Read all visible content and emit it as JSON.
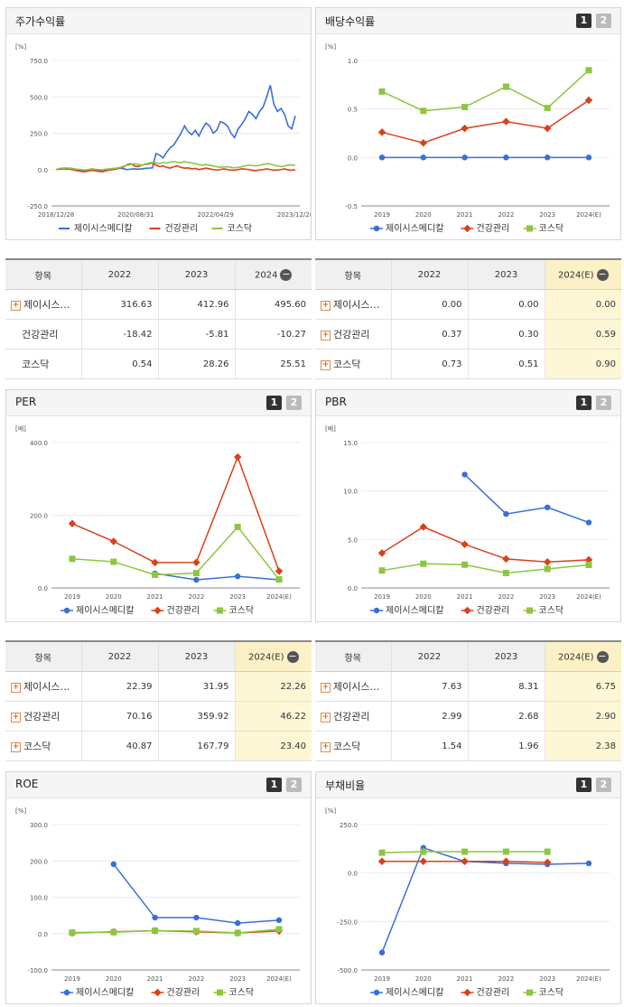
{
  "colors": {
    "company": "#3a6fd8",
    "health": "#d8421b",
    "kosdaq": "#8dc63f"
  },
  "legend": {
    "company": "제이시스메디칼",
    "health": "건강관리",
    "kosdaq": "코스닥"
  },
  "panels": [
    {
      "id": "return",
      "title": "주가수익률",
      "buttons": [],
      "chart_data": {
        "type": "line",
        "unit": "[%]",
        "ylim": [
          -250,
          750
        ],
        "yticks": [
          "750.0",
          "500.0",
          "250.0",
          "0.0",
          "-250.0"
        ],
        "x_tick_labels": [
          "2018/12/28",
          "2020/08/31",
          "2022/04/29",
          "2023/12/28"
        ],
        "series": [
          {
            "name": "제이시스메디칼",
            "key": "company",
            "values": [
              0,
              5,
              8,
              2,
              10,
              5,
              0,
              -5,
              -10,
              -5,
              5,
              0,
              -8,
              -12,
              -5,
              0,
              5,
              10,
              12,
              5,
              0,
              3,
              5,
              3,
              5,
              8,
              10,
              12,
              110,
              100,
              80,
              120,
              150,
              170,
              210,
              250,
              300,
              260,
              240,
              270,
              230,
              280,
              320,
              300,
              250,
              270,
              330,
              320,
              300,
              250,
              220,
              280,
              310,
              350,
              400,
              380,
              350,
              400,
              430,
              500,
              580,
              450,
              400,
              420,
              380,
              300,
              280,
              370
            ]
          },
          {
            "name": "건강관리",
            "key": "health",
            "values": [
              0,
              3,
              5,
              8,
              2,
              -3,
              -8,
              -12,
              -15,
              -10,
              -5,
              -8,
              -12,
              -15,
              -8,
              -3,
              0,
              5,
              10,
              20,
              35,
              40,
              25,
              20,
              30,
              35,
              40,
              45,
              30,
              20,
              25,
              15,
              10,
              20,
              25,
              15,
              10,
              12,
              5,
              8,
              0,
              5,
              10,
              5,
              0,
              -3,
              0,
              5,
              0,
              -3,
              -5,
              0,
              5,
              3,
              0,
              -5,
              -8,
              -3,
              0,
              5,
              0,
              -5,
              -3,
              0,
              5,
              -3,
              -5,
              0
            ]
          },
          {
            "name": "코스닥",
            "key": "kosdaq",
            "values": [
              0,
              8,
              10,
              12,
              8,
              5,
              2,
              0,
              -3,
              0,
              5,
              2,
              0,
              -2,
              3,
              5,
              8,
              10,
              15,
              25,
              30,
              35,
              40,
              35,
              30,
              38,
              45,
              50,
              45,
              40,
              48,
              45,
              52,
              55,
              50,
              48,
              55,
              50,
              45,
              40,
              35,
              30,
              35,
              30,
              25,
              20,
              15,
              18,
              20,
              15,
              12,
              15,
              20,
              25,
              30,
              28,
              25,
              30,
              35,
              40,
              38,
              30,
              25,
              20,
              25,
              30,
              32,
              28
            ]
          }
        ]
      },
      "table": {
        "headers": [
          "항목",
          "2022",
          "2023",
          "2024"
        ],
        "rows": [
          {
            "name": "제이시스…",
            "plus": true,
            "vals": [
              "316.63",
              "412.96",
              "495.60"
            ]
          },
          {
            "name": "건강관리",
            "plus": false,
            "vals": [
              "-18.42",
              "-5.81",
              "-10.27"
            ]
          },
          {
            "name": "코스닥",
            "plus": false,
            "vals": [
              "0.54",
              "28.26",
              "25.51"
            ]
          }
        ]
      }
    },
    {
      "id": "dividend",
      "title": "배당수익률",
      "buttons": [
        "1",
        "2"
      ],
      "chart_data": {
        "type": "line",
        "unit": "[%]",
        "ylim": [
          -0.5,
          1.0
        ],
        "yticks": [
          "1.0",
          "0.5",
          "0.0",
          "-0.5"
        ],
        "categories": [
          "2019",
          "2020",
          "2021",
          "2022",
          "2023",
          "2024(E)"
        ],
        "series": [
          {
            "name": "제이시스메디칼",
            "key": "company",
            "values": [
              0.0,
              0.0,
              0.0,
              0.0,
              0.0,
              0.0
            ]
          },
          {
            "name": "건강관리",
            "key": "health",
            "values": [
              0.26,
              0.15,
              0.3,
              0.37,
              0.3,
              0.59
            ]
          },
          {
            "name": "코스닥",
            "key": "kosdaq",
            "values": [
              0.68,
              0.48,
              0.52,
              0.73,
              0.51,
              0.9
            ]
          }
        ]
      },
      "table": {
        "headers": [
          "항목",
          "2022",
          "2023",
          "2024(E)"
        ],
        "rows": [
          {
            "name": "제이시스…",
            "plus": true,
            "vals": [
              "0.00",
              "0.00",
              "0.00"
            ]
          },
          {
            "name": "건강관리",
            "plus": true,
            "vals": [
              "0.37",
              "0.30",
              "0.59"
            ]
          },
          {
            "name": "코스닥",
            "plus": true,
            "vals": [
              "0.73",
              "0.51",
              "0.90"
            ]
          }
        ]
      }
    },
    {
      "id": "per",
      "title": "PER",
      "buttons": [
        "1",
        "2"
      ],
      "chart_data": {
        "type": "line",
        "unit": "[배]",
        "ylim": [
          0,
          400
        ],
        "yticks": [
          "400.0",
          "200.0",
          "0.0"
        ],
        "categories": [
          "2019",
          "2020",
          "2021",
          "2022",
          "2023",
          "2024(E)"
        ],
        "series": [
          {
            "name": "제이시스메디칼",
            "key": "company",
            "values": [
              null,
              null,
              40,
              22.39,
              31.95,
              22.26
            ]
          },
          {
            "name": "건강관리",
            "key": "health",
            "values": [
              177,
              128,
              70,
              70.16,
              359.92,
              46.22
            ]
          },
          {
            "name": "코스닥",
            "key": "kosdaq",
            "values": [
              80,
              72,
              36,
              40.87,
              167.79,
              23.4
            ]
          }
        ]
      },
      "table": {
        "headers": [
          "항목",
          "2022",
          "2023",
          "2024(E)"
        ],
        "rows": [
          {
            "name": "제이시스…",
            "plus": true,
            "vals": [
              "22.39",
              "31.95",
              "22.26"
            ]
          },
          {
            "name": "건강관리",
            "plus": true,
            "vals": [
              "70.16",
              "359.92",
              "46.22"
            ]
          },
          {
            "name": "코스닥",
            "plus": true,
            "vals": [
              "40.87",
              "167.79",
              "23.40"
            ]
          }
        ]
      }
    },
    {
      "id": "pbr",
      "title": "PBR",
      "buttons": [
        "1",
        "2"
      ],
      "chart_data": {
        "type": "line",
        "unit": "[배]",
        "ylim": [
          0,
          15
        ],
        "yticks": [
          "15.0",
          "10.0",
          "5.0",
          "0.0"
        ],
        "categories": [
          "2019",
          "2020",
          "2021",
          "2022",
          "2023",
          "2024(E)"
        ],
        "series": [
          {
            "name": "제이시스메디칼",
            "key": "company",
            "values": [
              null,
              null,
              11.7,
              7.63,
              8.31,
              6.75
            ]
          },
          {
            "name": "건강관리",
            "key": "health",
            "values": [
              3.6,
              6.3,
              4.5,
              2.99,
              2.68,
              2.9
            ]
          },
          {
            "name": "코스닥",
            "key": "kosdaq",
            "values": [
              1.8,
              2.5,
              2.4,
              1.54,
              1.96,
              2.38
            ]
          }
        ]
      },
      "table": {
        "headers": [
          "항목",
          "2022",
          "2023",
          "2024(E)"
        ],
        "rows": [
          {
            "name": "제이시스…",
            "plus": true,
            "vals": [
              "7.63",
              "8.31",
              "6.75"
            ]
          },
          {
            "name": "건강관리",
            "plus": true,
            "vals": [
              "2.99",
              "2.68",
              "2.90"
            ]
          },
          {
            "name": "코스닥",
            "plus": true,
            "vals": [
              "1.54",
              "1.96",
              "2.38"
            ]
          }
        ]
      }
    },
    {
      "id": "roe",
      "title": "ROE",
      "buttons": [
        "1",
        "2"
      ],
      "chart_data": {
        "type": "line",
        "unit": "[%]",
        "ylim": [
          -100,
          300
        ],
        "yticks": [
          "300.0",
          "200.0",
          "100.0",
          "0.0",
          "-100.0"
        ],
        "categories": [
          "2019",
          "2020",
          "2021",
          "2022",
          "2023",
          "2024(E)"
        ],
        "series": [
          {
            "name": "제이시스메디칼",
            "key": "company",
            "values": [
              null,
              191,
              44,
              44,
              29,
              37
            ]
          },
          {
            "name": "건강관리",
            "key": "health",
            "values": [
              2,
              5,
              8,
              5,
              2,
              7
            ]
          },
          {
            "name": "코스닥",
            "key": "kosdaq",
            "values": [
              3,
              4,
              8,
              7,
              2,
              12
            ]
          }
        ]
      }
    },
    {
      "id": "debt",
      "title": "부채비율",
      "buttons": [
        "1",
        "2"
      ],
      "chart_data": {
        "type": "line",
        "unit": "[%]",
        "ylim": [
          -500,
          250
        ],
        "yticks": [
          "250.0",
          "0.0",
          "-250.0",
          "-500.0"
        ],
        "categories": [
          "2019",
          "2020",
          "2021",
          "2022",
          "2023",
          "2024(E)"
        ],
        "series": [
          {
            "name": "제이시스메디칼",
            "key": "company",
            "values": [
              -410,
              130,
              60,
              50,
              45,
              50
            ]
          },
          {
            "name": "건강관리",
            "key": "health",
            "values": [
              60,
              60,
              60,
              60,
              55,
              null
            ]
          },
          {
            "name": "코스닥",
            "key": "kosdaq",
            "values": [
              105,
              110,
              110,
              110,
              110,
              null
            ]
          }
        ]
      }
    }
  ]
}
